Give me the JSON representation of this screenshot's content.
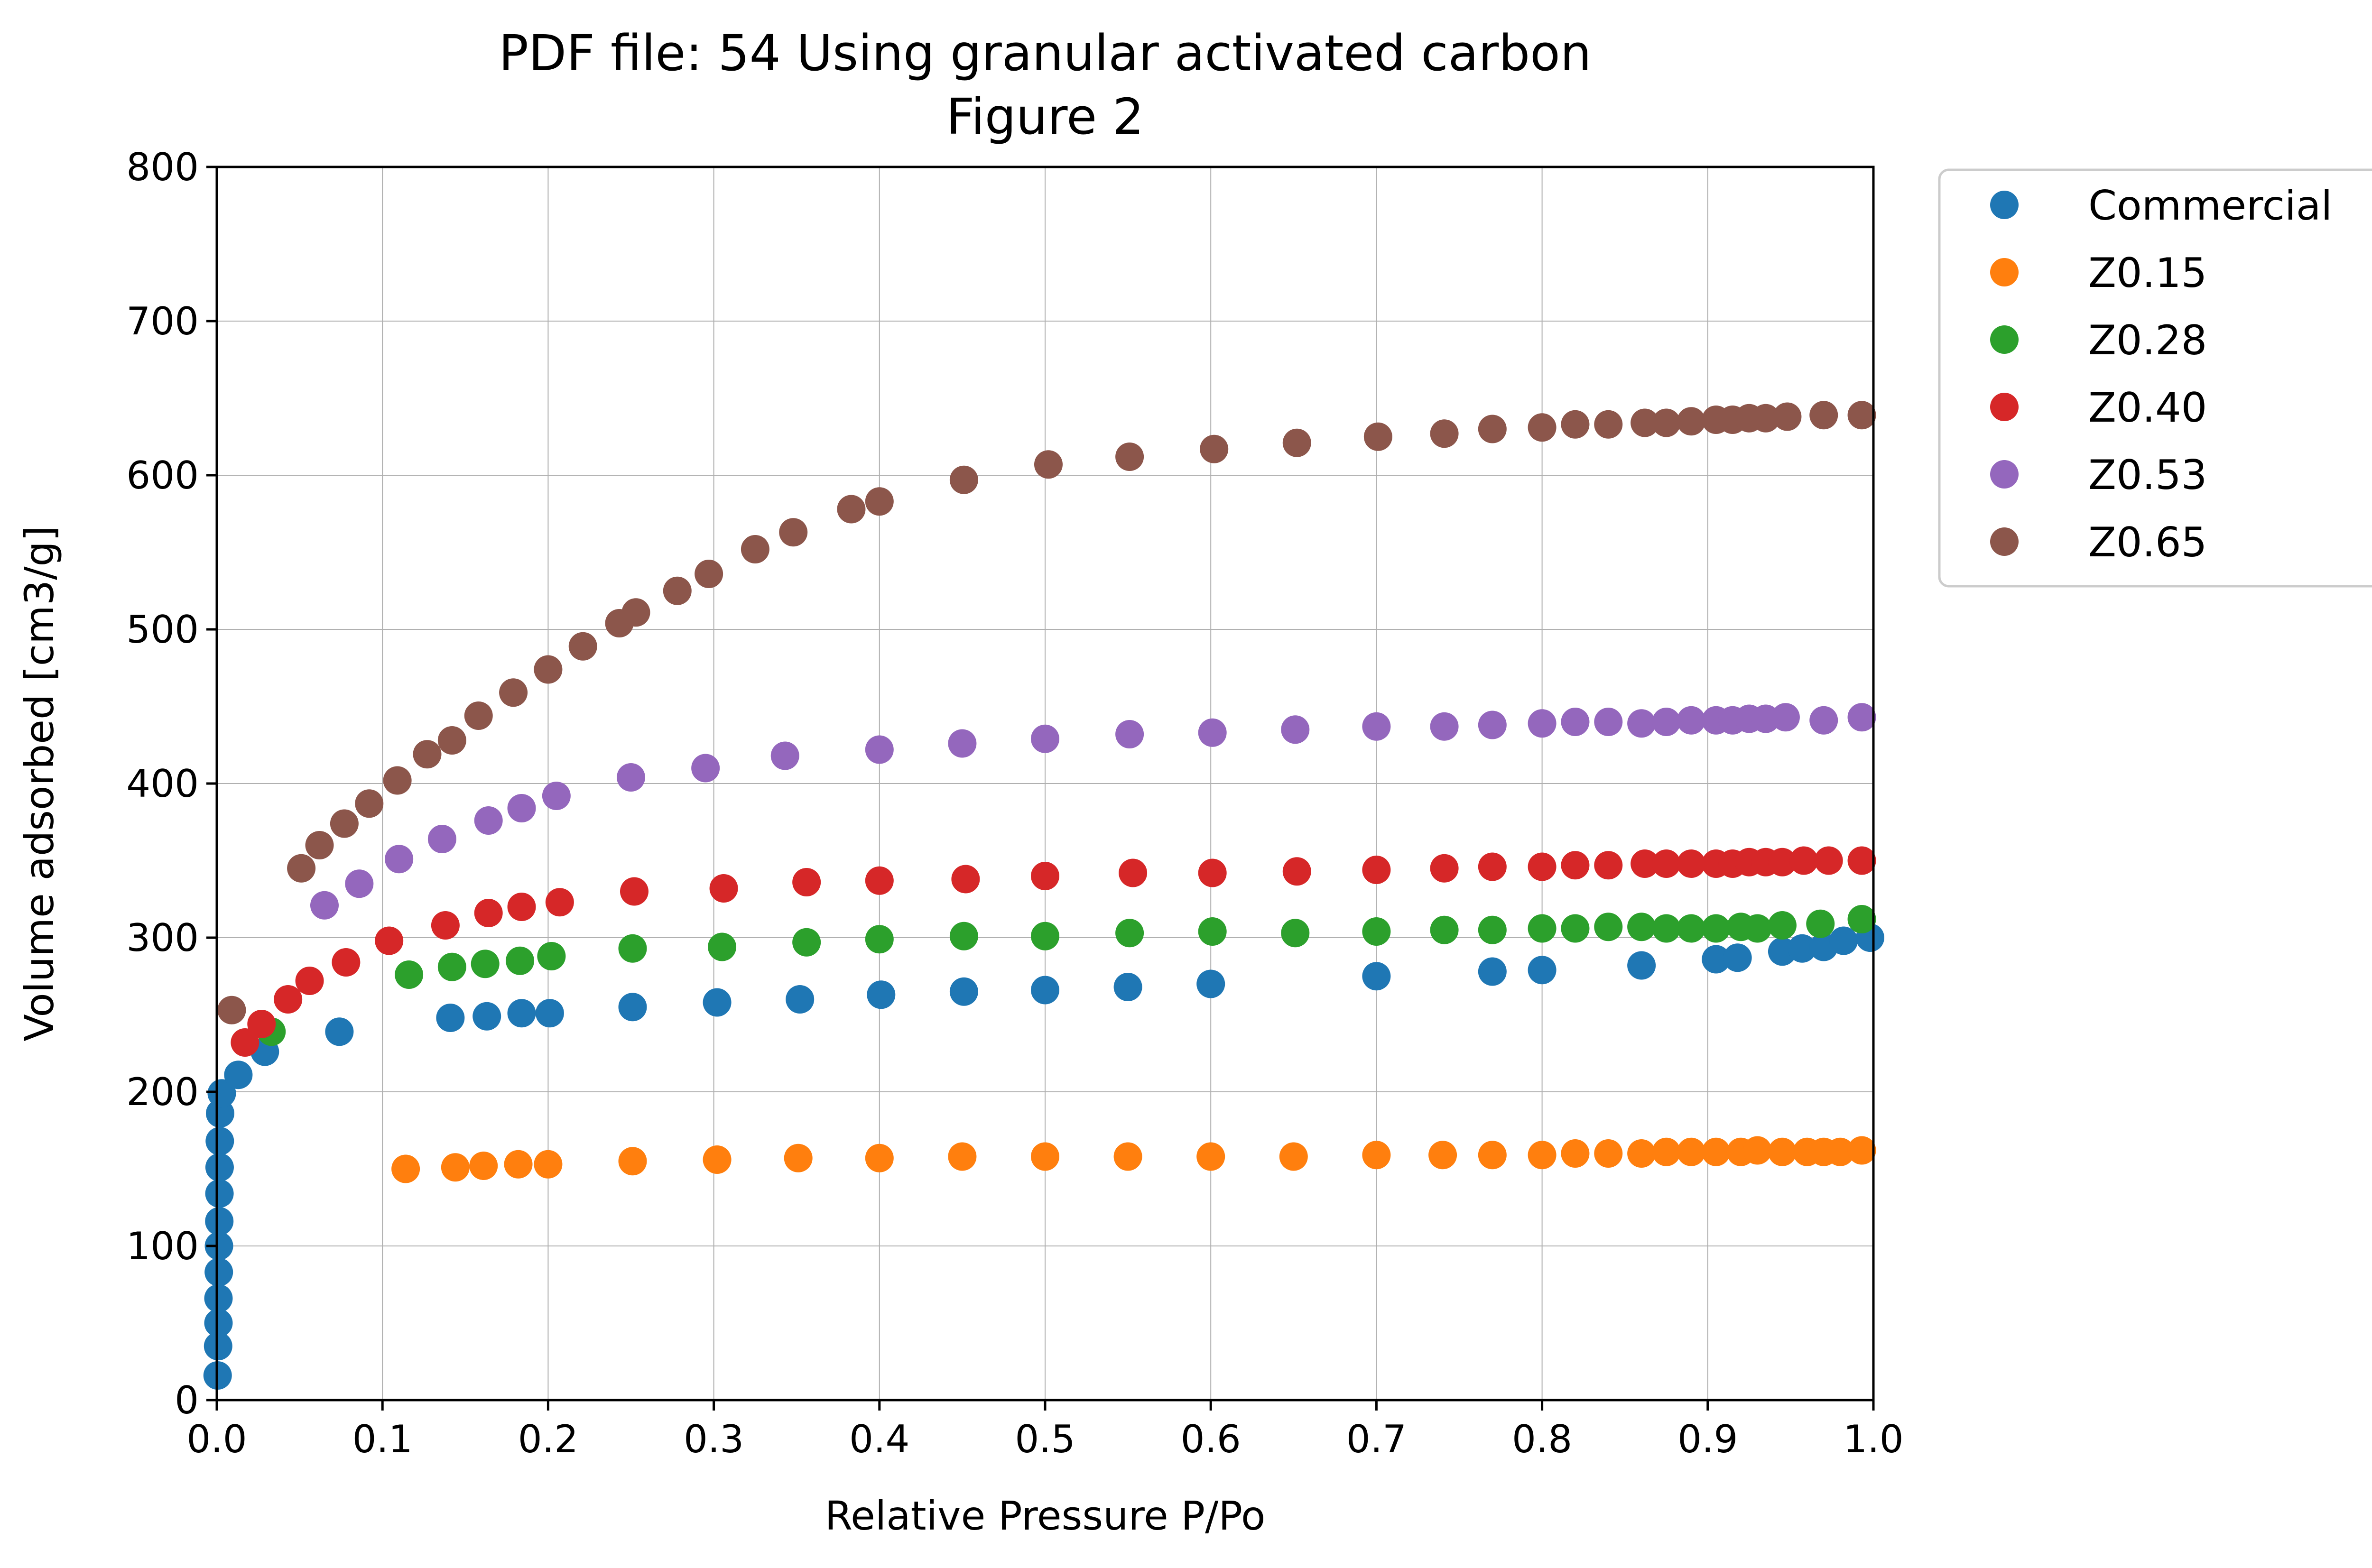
{
  "chart_data": {
    "type": "scatter",
    "title": "PDF file: 54 Using granular activated carbon",
    "subtitle": "Figure 2",
    "xlabel": "Relative Pressure P/Po",
    "ylabel": "Volume adsorbed [cm3/g]",
    "xlim": [
      0,
      1
    ],
    "ylim": [
      0,
      800
    ],
    "x_ticks": [
      "0.0",
      "0.1",
      "0.2",
      "0.3",
      "0.4",
      "0.5",
      "0.6",
      "0.7",
      "0.8",
      "0.9",
      "1.0"
    ],
    "y_ticks": [
      "0",
      "100",
      "200",
      "300",
      "400",
      "500",
      "600",
      "700",
      "800"
    ],
    "grid": true,
    "legend_position": "outside-right-top",
    "series": [
      {
        "name": "Commercial",
        "color": "#1f77b4",
        "points": [
          [
            0.0005,
            16
          ],
          [
            0.0008,
            35
          ],
          [
            0.001,
            50
          ],
          [
            0.001,
            66
          ],
          [
            0.0012,
            83
          ],
          [
            0.0013,
            100
          ],
          [
            0.0015,
            116
          ],
          [
            0.0016,
            134
          ],
          [
            0.0017,
            151
          ],
          [
            0.0018,
            168
          ],
          [
            0.002,
            186
          ],
          [
            0.003,
            199
          ],
          [
            0.013,
            211
          ],
          [
            0.029,
            226
          ],
          [
            0.074,
            239
          ],
          [
            0.141,
            248
          ],
          [
            0.163,
            249
          ],
          [
            0.184,
            251
          ],
          [
            0.201,
            251
          ],
          [
            0.251,
            255
          ],
          [
            0.302,
            258
          ],
          [
            0.352,
            260
          ],
          [
            0.401,
            263
          ],
          [
            0.451,
            265
          ],
          [
            0.5,
            266
          ],
          [
            0.55,
            268
          ],
          [
            0.6,
            270
          ],
          [
            0.7,
            275
          ],
          [
            0.77,
            278
          ],
          [
            0.8,
            279
          ],
          [
            0.86,
            282
          ],
          [
            0.905,
            286
          ],
          [
            0.918,
            287
          ],
          [
            0.945,
            291
          ],
          [
            0.957,
            293
          ],
          [
            0.97,
            294
          ],
          [
            0.982,
            298
          ],
          [
            0.998,
            300
          ]
        ]
      },
      {
        "name": "Z0.15",
        "color": "#ff7f0e",
        "points": [
          [
            0.114,
            150
          ],
          [
            0.144,
            151
          ],
          [
            0.161,
            152
          ],
          [
            0.182,
            153
          ],
          [
            0.2,
            153
          ],
          [
            0.251,
            155
          ],
          [
            0.302,
            156
          ],
          [
            0.351,
            157
          ],
          [
            0.4,
            157
          ],
          [
            0.45,
            158
          ],
          [
            0.5,
            158
          ],
          [
            0.55,
            158
          ],
          [
            0.6,
            158
          ],
          [
            0.65,
            158
          ],
          [
            0.7,
            159
          ],
          [
            0.74,
            159
          ],
          [
            0.77,
            159
          ],
          [
            0.8,
            159
          ],
          [
            0.82,
            160
          ],
          [
            0.84,
            160
          ],
          [
            0.86,
            160
          ],
          [
            0.875,
            161
          ],
          [
            0.89,
            161
          ],
          [
            0.905,
            161
          ],
          [
            0.92,
            161
          ],
          [
            0.93,
            162
          ],
          [
            0.945,
            161
          ],
          [
            0.96,
            161
          ],
          [
            0.97,
            161
          ],
          [
            0.98,
            161
          ],
          [
            0.993,
            162
          ]
        ]
      },
      {
        "name": "Z0.28",
        "color": "#2ca02c",
        "points": [
          [
            0.033,
            239
          ],
          [
            0.116,
            276
          ],
          [
            0.142,
            281
          ],
          [
            0.162,
            283
          ],
          [
            0.183,
            285
          ],
          [
            0.202,
            288
          ],
          [
            0.251,
            293
          ],
          [
            0.305,
            294
          ],
          [
            0.356,
            297
          ],
          [
            0.4,
            299
          ],
          [
            0.451,
            301
          ],
          [
            0.5,
            301
          ],
          [
            0.551,
            303
          ],
          [
            0.601,
            304
          ],
          [
            0.651,
            303
          ],
          [
            0.7,
            304
          ],
          [
            0.741,
            305
          ],
          [
            0.77,
            305
          ],
          [
            0.8,
            306
          ],
          [
            0.82,
            306
          ],
          [
            0.84,
            307
          ],
          [
            0.86,
            307
          ],
          [
            0.875,
            306
          ],
          [
            0.89,
            306
          ],
          [
            0.905,
            306
          ],
          [
            0.92,
            307
          ],
          [
            0.93,
            306
          ],
          [
            0.945,
            308
          ],
          [
            0.968,
            309
          ],
          [
            0.993,
            312
          ]
        ]
      },
      {
        "name": "Z0.40",
        "color": "#d62728",
        "points": [
          [
            0.017,
            232
          ],
          [
            0.027,
            244
          ],
          [
            0.043,
            260
          ],
          [
            0.056,
            272
          ],
          [
            0.078,
            284
          ],
          [
            0.104,
            298
          ],
          [
            0.138,
            308
          ],
          [
            0.164,
            316
          ],
          [
            0.184,
            320
          ],
          [
            0.207,
            323
          ],
          [
            0.252,
            330
          ],
          [
            0.306,
            332
          ],
          [
            0.356,
            336
          ],
          [
            0.4,
            337
          ],
          [
            0.452,
            338
          ],
          [
            0.5,
            340
          ],
          [
            0.553,
            342
          ],
          [
            0.601,
            342
          ],
          [
            0.652,
            343
          ],
          [
            0.7,
            344
          ],
          [
            0.741,
            345
          ],
          [
            0.77,
            346
          ],
          [
            0.8,
            346
          ],
          [
            0.82,
            347
          ],
          [
            0.84,
            347
          ],
          [
            0.862,
            348
          ],
          [
            0.875,
            348
          ],
          [
            0.89,
            348
          ],
          [
            0.905,
            348
          ],
          [
            0.915,
            348
          ],
          [
            0.925,
            349
          ],
          [
            0.935,
            349
          ],
          [
            0.945,
            349
          ],
          [
            0.958,
            350
          ],
          [
            0.973,
            350
          ],
          [
            0.993,
            350
          ]
        ]
      },
      {
        "name": "Z0.53",
        "color": "#9467bd",
        "points": [
          [
            0.065,
            321
          ],
          [
            0.086,
            335
          ],
          [
            0.11,
            351
          ],
          [
            0.136,
            364
          ],
          [
            0.164,
            376
          ],
          [
            0.184,
            384
          ],
          [
            0.205,
            392
          ],
          [
            0.25,
            404
          ],
          [
            0.295,
            410
          ],
          [
            0.343,
            418
          ],
          [
            0.4,
            422
          ],
          [
            0.45,
            426
          ],
          [
            0.5,
            429
          ],
          [
            0.551,
            432
          ],
          [
            0.601,
            433
          ],
          [
            0.651,
            435
          ],
          [
            0.7,
            437
          ],
          [
            0.741,
            437
          ],
          [
            0.77,
            438
          ],
          [
            0.8,
            439
          ],
          [
            0.82,
            440
          ],
          [
            0.84,
            440
          ],
          [
            0.86,
            439
          ],
          [
            0.875,
            440
          ],
          [
            0.89,
            441
          ],
          [
            0.905,
            441
          ],
          [
            0.915,
            441
          ],
          [
            0.925,
            442
          ],
          [
            0.935,
            442
          ],
          [
            0.947,
            443
          ],
          [
            0.97,
            441
          ],
          [
            0.993,
            443
          ]
        ]
      },
      {
        "name": "Z0.65",
        "color": "#8c564b",
        "points": [
          [
            0.009,
            253
          ],
          [
            0.051,
            345
          ],
          [
            0.062,
            360
          ],
          [
            0.077,
            374
          ],
          [
            0.092,
            387
          ],
          [
            0.109,
            402
          ],
          [
            0.127,
            419
          ],
          [
            0.142,
            428
          ],
          [
            0.158,
            444
          ],
          [
            0.179,
            459
          ],
          [
            0.2,
            474
          ],
          [
            0.221,
            489
          ],
          [
            0.243,
            504
          ],
          [
            0.253,
            511
          ],
          [
            0.278,
            525
          ],
          [
            0.297,
            536
          ],
          [
            0.325,
            552
          ],
          [
            0.348,
            563
          ],
          [
            0.383,
            578
          ],
          [
            0.4,
            583
          ],
          [
            0.451,
            597
          ],
          [
            0.502,
            607
          ],
          [
            0.551,
            612
          ],
          [
            0.602,
            617
          ],
          [
            0.652,
            621
          ],
          [
            0.701,
            625
          ],
          [
            0.741,
            627
          ],
          [
            0.77,
            630
          ],
          [
            0.8,
            631
          ],
          [
            0.82,
            633
          ],
          [
            0.84,
            633
          ],
          [
            0.862,
            634
          ],
          [
            0.875,
            634
          ],
          [
            0.89,
            635
          ],
          [
            0.905,
            636
          ],
          [
            0.915,
            636
          ],
          [
            0.925,
            637
          ],
          [
            0.935,
            637
          ],
          [
            0.948,
            638
          ],
          [
            0.97,
            639
          ],
          [
            0.993,
            639
          ]
        ]
      }
    ]
  }
}
